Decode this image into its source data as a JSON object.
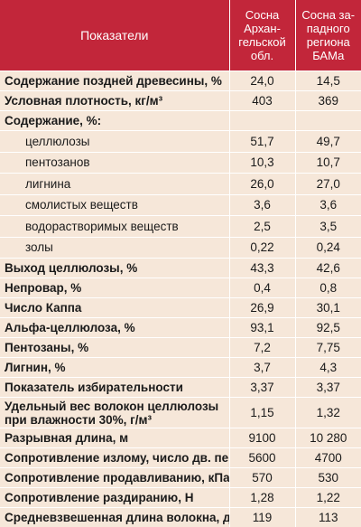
{
  "header": {
    "name_col": "Показатели",
    "col1_lines": [
      "Сосна",
      "Архан-",
      "гельской",
      "обл."
    ],
    "col2_lines": [
      "Сосна за-",
      "падного",
      "региона",
      "БАМа"
    ]
  },
  "rows": [
    {
      "name": "Содержание поздней древесины, %",
      "v1": "24,0",
      "v2": "14,5"
    },
    {
      "name": "Условная плотность, кг/м³",
      "v1": "403",
      "v2": "369"
    },
    {
      "name": "Содержание, %:",
      "v1": "",
      "v2": ""
    },
    {
      "name": "целлюлозы",
      "v1": "51,7",
      "v2": "49,7"
    },
    {
      "name": "пентозанов",
      "v1": "10,3",
      "v2": "10,7"
    },
    {
      "name": "лигнина",
      "v1": "26,0",
      "v2": "27,0"
    },
    {
      "name": "смолистых веществ",
      "v1": "3,6",
      "v2": "3,6"
    },
    {
      "name": "водорастворимых веществ",
      "v1": "2,5",
      "v2": "3,5"
    },
    {
      "name": "золы",
      "v1": "0,22",
      "v2": "0,24"
    },
    {
      "name": "Выход целлюлозы, %",
      "v1": "43,3",
      "v2": "42,6"
    },
    {
      "name": "Непровар, %",
      "v1": "0,4",
      "v2": "0,8"
    },
    {
      "name": "Число Каппа",
      "v1": "26,9",
      "v2": "30,1"
    },
    {
      "name": "Альфа-целлюлоза, %",
      "v1": "93,1",
      "v2": "92,5"
    },
    {
      "name": "Пентозаны, %",
      "v1": "7,2",
      "v2": "7,75"
    },
    {
      "name": "Лигнин, %",
      "v1": "3,7",
      "v2": "4,3"
    },
    {
      "name": "Показатель избирательности",
      "v1": "3,37",
      "v2": "3,37"
    },
    {
      "name": "Удельный вес волокон целлюлозы при влажности 30%, г/м³",
      "v1": "1,15",
      "v2": "1,32"
    },
    {
      "name": "Разрывная длина, м",
      "v1": "9100",
      "v2": "10 280"
    },
    {
      "name": "Сопротивление излому, число дв. пер.",
      "v1": "5600",
      "v2": "4700"
    },
    {
      "name": "Сопротивление продавливанию, кПа",
      "v1": "570",
      "v2": "530"
    },
    {
      "name": "Сопротивление раздиранию, Н",
      "v1": "1,28",
      "v2": "1,22"
    },
    {
      "name": "Средневзвешенная длина волокна, дг",
      "v1": "119",
      "v2": "113"
    }
  ]
}
